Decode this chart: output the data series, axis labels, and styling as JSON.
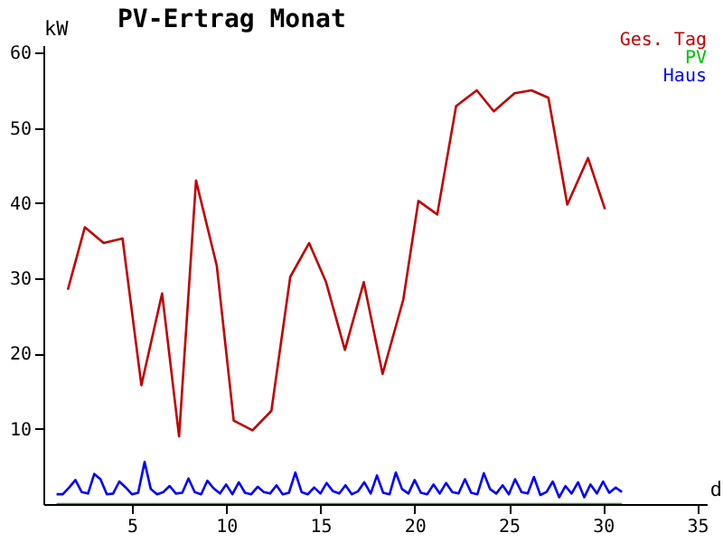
{
  "chart_data": {
    "type": "line",
    "title": "PV-Ertrag Monat",
    "xlabel": "d",
    "ylabel": "kW",
    "xlim": [
      0.3,
      35.5
    ],
    "ylim": [
      0,
      61
    ],
    "xticks": [
      5,
      10,
      15,
      20,
      25,
      30,
      35
    ],
    "yticks": [
      10,
      20,
      30,
      40,
      50,
      60
    ],
    "grid": false,
    "legend": "top right",
    "marker": "none",
    "line_style": "solid",
    "series": [
      {
        "name": "Ges. Tag",
        "color": "#c00000",
        "x": [
          1.6,
          2.5,
          3.5,
          4.5,
          5.5,
          6.6,
          7.5,
          8.4,
          9.5,
          10.4,
          11.4,
          12.4,
          13.4,
          14.4,
          15.3,
          16.3,
          17.3,
          18.3,
          19.4,
          20.2,
          21.2,
          22.2,
          23.3,
          24.2,
          25.3,
          26.2,
          27.1,
          28.1,
          29.2,
          30.1
        ],
        "values": [
          28.5,
          36.8,
          34.7,
          35.3,
          15.8,
          28.0,
          9.0,
          43.0,
          31.7,
          11.1,
          9.8,
          12.4,
          30.2,
          34.7,
          29.5,
          20.5,
          29.5,
          17.3,
          27.2,
          40.3,
          38.5,
          52.9,
          55.0,
          52.2,
          54.6,
          55.0,
          54.0,
          39.8,
          46.0,
          39.2
        ]
      },
      {
        "name": "PV",
        "color": "#00c000",
        "x": [
          1,
          31
        ],
        "values": [
          0,
          0
        ]
      },
      {
        "name": "Haus",
        "color": "#0000ff",
        "x": [
          1,
          1.33,
          1.67,
          2,
          2.33,
          2.67,
          3,
          3.33,
          3.67,
          4,
          4.33,
          4.67,
          5,
          5.33,
          5.67,
          6,
          6.33,
          6.67,
          7,
          7.33,
          7.67,
          8,
          8.33,
          8.67,
          9,
          9.33,
          9.67,
          10,
          10.33,
          10.67,
          11,
          11.33,
          11.67,
          12,
          12.33,
          12.67,
          13,
          13.33,
          13.67,
          14,
          14.33,
          14.67,
          15,
          15.33,
          15.67,
          16,
          16.33,
          16.67,
          17,
          17.33,
          17.67,
          18,
          18.33,
          18.67,
          19,
          19.33,
          19.67,
          20,
          20.33,
          20.67,
          21,
          21.33,
          21.67,
          22,
          22.33,
          22.67,
          23,
          23.33,
          23.67,
          24,
          24.33,
          24.67,
          25,
          25.33,
          25.67,
          26,
          26.33,
          26.67,
          27,
          27.33,
          27.67,
          28,
          28.33,
          28.67,
          29,
          29.33,
          29.67,
          30,
          30.33,
          30.67,
          31
        ],
        "values": [
          1.3,
          1.3,
          2.2,
          3.2,
          1.6,
          1.4,
          4.0,
          3.3,
          1.3,
          1.4,
          3.0,
          2.2,
          1.3,
          1.5,
          5.6,
          2.0,
          1.3,
          1.6,
          2.4,
          1.4,
          1.5,
          3.4,
          1.6,
          1.3,
          3.1,
          2.1,
          1.4,
          2.6,
          1.3,
          2.9,
          1.5,
          1.3,
          2.3,
          1.6,
          1.4,
          2.5,
          1.3,
          1.5,
          4.2,
          1.6,
          1.3,
          2.2,
          1.4,
          2.8,
          1.7,
          1.4,
          2.5,
          1.3,
          1.7,
          2.9,
          1.4,
          3.8,
          1.5,
          1.3,
          4.2,
          2.0,
          1.4,
          3.2,
          1.5,
          1.3,
          2.6,
          1.4,
          2.8,
          1.6,
          1.4,
          3.3,
          1.5,
          1.3,
          4.1,
          2.0,
          1.4,
          2.5,
          1.3,
          3.3,
          1.6,
          1.4,
          3.6,
          1.2,
          1.6,
          3.0,
          0.9,
          2.4,
          1.4,
          2.9,
          0.9,
          2.6,
          1.4,
          3.0,
          1.5,
          2.2,
          1.6
        ]
      }
    ]
  }
}
